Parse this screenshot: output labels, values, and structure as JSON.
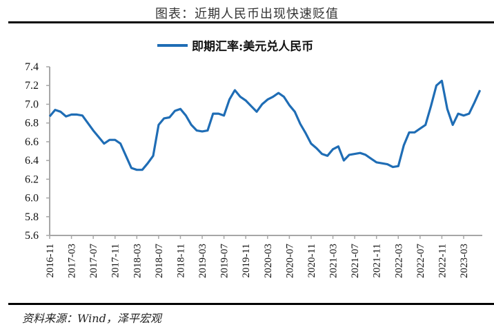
{
  "header": {
    "title": "图表：近期人民币出现快速贬值"
  },
  "footer": {
    "source": "资料来源：Wind，泽平宏观"
  },
  "colors": {
    "series": "#1f6db5",
    "axis": "#a6a6a6",
    "rule": "#000000"
  },
  "chart_data": {
    "type": "line",
    "title": "图表：近期人民币出现快速贬值",
    "xlabel": "",
    "ylabel": "",
    "ylim": [
      5.6,
      7.4
    ],
    "yticks": [
      "7.4",
      "7.2",
      "7.0",
      "6.8",
      "6.6",
      "6.4",
      "6.2",
      "6.0",
      "5.8",
      "5.6"
    ],
    "xticks": [
      "2016-11",
      "2017-03",
      "2017-07",
      "2017-11",
      "2018-03",
      "2018-07",
      "2018-11",
      "2019-03",
      "2019-07",
      "2019-11",
      "2020-03",
      "2020-07",
      "2020-11",
      "2021-03",
      "2021-07",
      "2021-11",
      "2022-03",
      "2022-07",
      "2022-11",
      "2023-03"
    ],
    "grid": false,
    "legend_position": "top-center",
    "series": [
      {
        "name": "即期汇率:美元兑人民币",
        "x": [
          "2016-11",
          "2016-12",
          "2017-01",
          "2017-02",
          "2017-03",
          "2017-04",
          "2017-05",
          "2017-06",
          "2017-07",
          "2017-08",
          "2017-09",
          "2017-10",
          "2017-11",
          "2017-12",
          "2018-01",
          "2018-02",
          "2018-03",
          "2018-04",
          "2018-05",
          "2018-06",
          "2018-07",
          "2018-08",
          "2018-09",
          "2018-10",
          "2018-11",
          "2018-12",
          "2019-01",
          "2019-02",
          "2019-03",
          "2019-04",
          "2019-05",
          "2019-06",
          "2019-07",
          "2019-08",
          "2019-09",
          "2019-10",
          "2019-11",
          "2019-12",
          "2020-01",
          "2020-02",
          "2020-03",
          "2020-04",
          "2020-05",
          "2020-06",
          "2020-07",
          "2020-08",
          "2020-09",
          "2020-10",
          "2020-11",
          "2020-12",
          "2021-01",
          "2021-02",
          "2021-03",
          "2021-04",
          "2021-05",
          "2021-06",
          "2021-07",
          "2021-08",
          "2021-09",
          "2021-10",
          "2021-11",
          "2021-12",
          "2022-01",
          "2022-02",
          "2022-03",
          "2022-04",
          "2022-05",
          "2022-06",
          "2022-07",
          "2022-08",
          "2022-09",
          "2022-10",
          "2022-11",
          "2022-12",
          "2023-01",
          "2023-02",
          "2023-03",
          "2023-04",
          "2023-05",
          "2023-06"
        ],
        "values": [
          6.87,
          6.94,
          6.92,
          6.87,
          6.89,
          6.89,
          6.88,
          6.8,
          6.72,
          6.65,
          6.58,
          6.62,
          6.62,
          6.58,
          6.45,
          6.32,
          6.3,
          6.3,
          6.37,
          6.45,
          6.78,
          6.85,
          6.86,
          6.93,
          6.95,
          6.88,
          6.78,
          6.72,
          6.71,
          6.72,
          6.9,
          6.9,
          6.88,
          7.05,
          7.15,
          7.08,
          7.04,
          6.98,
          6.92,
          7.0,
          7.05,
          7.08,
          7.12,
          7.08,
          6.99,
          6.92,
          6.79,
          6.69,
          6.58,
          6.53,
          6.47,
          6.45,
          6.52,
          6.55,
          6.4,
          6.46,
          6.47,
          6.48,
          6.46,
          6.42,
          6.38,
          6.37,
          6.36,
          6.33,
          6.34,
          6.56,
          6.7,
          6.7,
          6.74,
          6.78,
          6.98,
          7.2,
          7.25,
          6.95,
          6.78,
          6.9,
          6.88,
          6.9,
          7.02,
          7.15
        ]
      }
    ]
  }
}
